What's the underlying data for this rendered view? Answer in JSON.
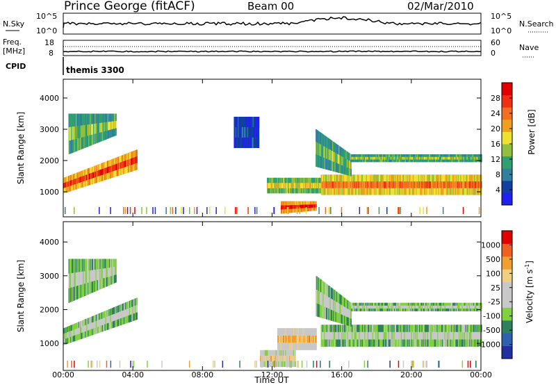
{
  "header": {
    "station": "Prince George (fitACF)",
    "beam": "Beam 00",
    "date": "02/Mar/2010"
  },
  "strips": {
    "nsky_label": "N.Sky",
    "nsearch_label": "N.Search",
    "nsky_ticks": [
      "10^5",
      "10^0"
    ],
    "nsearch_ticks": [
      "10^5",
      "10^0"
    ],
    "freq_label_1": "Freq.",
    "freq_label_2": "[MHz]",
    "freq_ticks": [
      "18",
      "8"
    ],
    "nave_label": "Nave",
    "nave_ticks": [
      "60",
      "0"
    ],
    "cpid_label": "CPID",
    "cpid_text": "themis 3300"
  },
  "colors": {
    "power": [
      "#2020f0",
      "#1040a0",
      "#3080a0",
      "#30a070",
      "#90c040",
      "#f0e030",
      "#f0a020",
      "#f07020",
      "#f03010",
      "#e00000"
    ],
    "velocity": [
      "#e00000",
      "#f06020",
      "#f0a030",
      "#f0d080",
      "#c8c8c8",
      "#c8c8c8",
      "#80d040",
      "#308060",
      "#3060b0",
      "#2030a0"
    ]
  },
  "chart_data": [
    {
      "type": "heatmap",
      "panel": "power",
      "ylabel": "Slant Range [km]",
      "ylim": [
        200,
        4600
      ],
      "yticks": [
        "1000",
        "2000",
        "3000",
        "4000"
      ],
      "xlim": [
        0,
        24
      ],
      "colorbar": {
        "label": "Power [dB]",
        "ticks": [
          "28",
          "24",
          "20",
          "16",
          "12",
          "8",
          "4"
        ],
        "range": [
          0,
          30
        ]
      },
      "echo_regions": [
        {
          "t0": 0.0,
          "t1": 4.2,
          "r0": 950,
          "r1": 1450,
          "r0b": 1700,
          "r1b": 2350,
          "level": 0.85
        },
        {
          "t0": 0.3,
          "t1": 3.0,
          "r0": 2200,
          "r1": 3500,
          "r0b": 2800,
          "r1b": 3500,
          "level": 0.45
        },
        {
          "t0": 12.5,
          "t1": 14.5,
          "r0": 300,
          "r1": 700,
          "r0b": 400,
          "r1b": 700,
          "level": 0.9
        },
        {
          "t0": 11.7,
          "t1": 14.8,
          "r0": 950,
          "r1": 1450,
          "r0b": 950,
          "r1b": 1450,
          "level": 0.55
        },
        {
          "t0": 14.8,
          "t1": 24.0,
          "r0": 900,
          "r1": 1550,
          "r0b": 900,
          "r1b": 1550,
          "level": 0.75
        },
        {
          "t0": 14.5,
          "t1": 16.5,
          "r0": 1800,
          "r1": 3000,
          "r0b": 1500,
          "r1b": 2200,
          "level": 0.45
        },
        {
          "t0": 16.5,
          "t1": 24.0,
          "r0": 1950,
          "r1": 2200,
          "r0b": 1950,
          "r1b": 2200,
          "level": 0.45
        },
        {
          "t0": 9.8,
          "t1": 11.2,
          "r0": 2400,
          "r1": 3400,
          "r0b": 2400,
          "r1b": 3400,
          "level": 0.15
        }
      ]
    },
    {
      "type": "heatmap",
      "panel": "velocity",
      "ylabel": "Slant Range [km]",
      "ylim": [
        200,
        4600
      ],
      "yticks": [
        "1000",
        "2000",
        "3000",
        "4000"
      ],
      "xlabel": "Time UT",
      "xticks": [
        "00:00",
        "04:00",
        "08:00",
        "12:00",
        "16:00",
        "20:00",
        "00:00"
      ],
      "xlim": [
        0,
        24
      ],
      "colorbar": {
        "label": "Velocity [m s",
        "label_sup": "-1",
        "label_end": "]",
        "ticks": [
          "1000",
          "500",
          "100",
          "25",
          "-25",
          "-100",
          "-500",
          "-1000"
        ]
      },
      "echo_regions": [
        {
          "t0": 0.0,
          "t1": 4.2,
          "r0": 950,
          "r1": 1450,
          "r0b": 1700,
          "r1b": 2350,
          "level": 0.45
        },
        {
          "t0": 0.3,
          "t1": 3.0,
          "r0": 2200,
          "r1": 3500,
          "r0b": 2800,
          "r1b": 3500,
          "level": 0.45
        },
        {
          "t0": 12.3,
          "t1": 14.5,
          "r0": 800,
          "r1": 1450,
          "r0b": 800,
          "r1b": 1450,
          "level": 0.72
        },
        {
          "t0": 11.3,
          "t1": 13.3,
          "r0": 300,
          "r1": 800,
          "r0b": 300,
          "r1b": 800,
          "level": 0.62
        },
        {
          "t0": 14.8,
          "t1": 24.0,
          "r0": 900,
          "r1": 1550,
          "r0b": 900,
          "r1b": 1550,
          "level": 0.45
        },
        {
          "t0": 14.5,
          "t1": 16.5,
          "r0": 1800,
          "r1": 3000,
          "r0b": 1500,
          "r1b": 2200,
          "level": 0.45
        },
        {
          "t0": 16.5,
          "t1": 24.0,
          "r0": 1950,
          "r1": 2200,
          "r0b": 1950,
          "r1b": 2200,
          "level": 0.45
        }
      ]
    }
  ]
}
